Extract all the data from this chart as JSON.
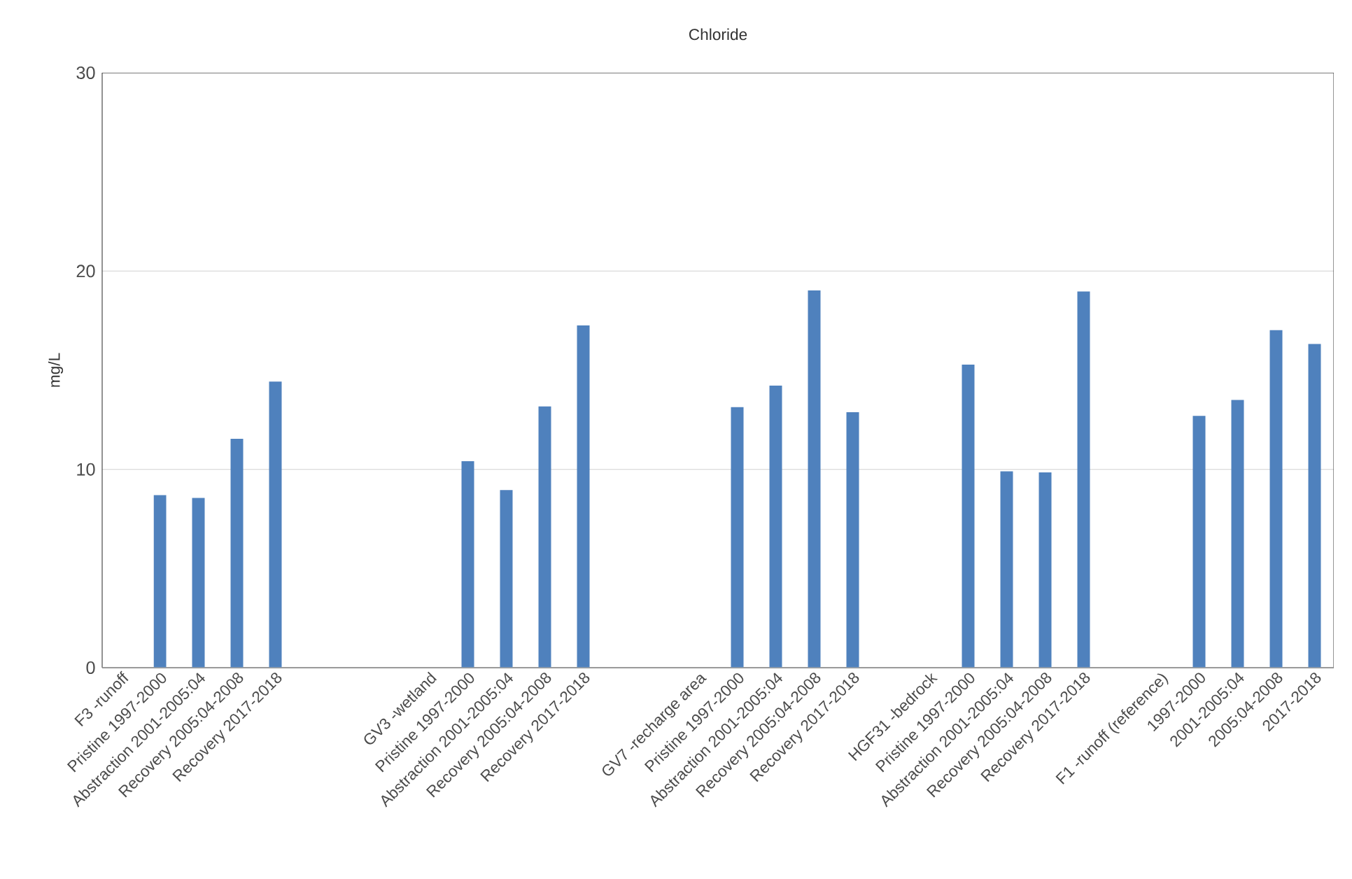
{
  "chart_data": {
    "type": "bar",
    "title": "Chloride",
    "ylabel": "mg/L",
    "categories": [
      "F3 -runoff",
      "Pristine 1997-2000",
      "Abstraction 2001-2005:04",
      "Recovery 2005:04-2008",
      "Recovery 2017-2018",
      null,
      null,
      null,
      "GV3 -wetland",
      "Pristine 1997-2000",
      "Abstraction 2001-2005:04",
      "Recovery 2005:04-2008",
      "Recovery 2017-2018",
      null,
      null,
      "GV7 -recharge area",
      "Pristine 1997-2000",
      "Abstraction 2001-2005:04",
      "Recovery 2005:04-2008",
      "Recovery 2017-2018",
      null,
      "HGF31 -bedrock",
      "Pristine 1997-2000",
      "Abstraction 2001-2005:04",
      "Recovery 2005:04-2008",
      "Recovery 2017-2018",
      null,
      "F1 -runoff (reference)",
      "1997-2000",
      "2001-2005:04",
      "2005:04-2008",
      "2017-2018"
    ],
    "values": [
      null,
      8.7,
      8.56,
      11.54,
      14.43,
      null,
      null,
      null,
      null,
      10.41,
      8.96,
      13.17,
      17.26,
      null,
      null,
      null,
      13.14,
      14.22,
      19.02,
      12.88,
      null,
      null,
      15.28,
      9.9,
      9.85,
      18.97,
      null,
      null,
      12.7,
      13.5,
      17.02,
      16.32
    ],
    "color": "#4f81bd",
    "ylim": [
      0,
      30
    ],
    "yticks": [
      0,
      10,
      20,
      30
    ],
    "grid": "y"
  }
}
